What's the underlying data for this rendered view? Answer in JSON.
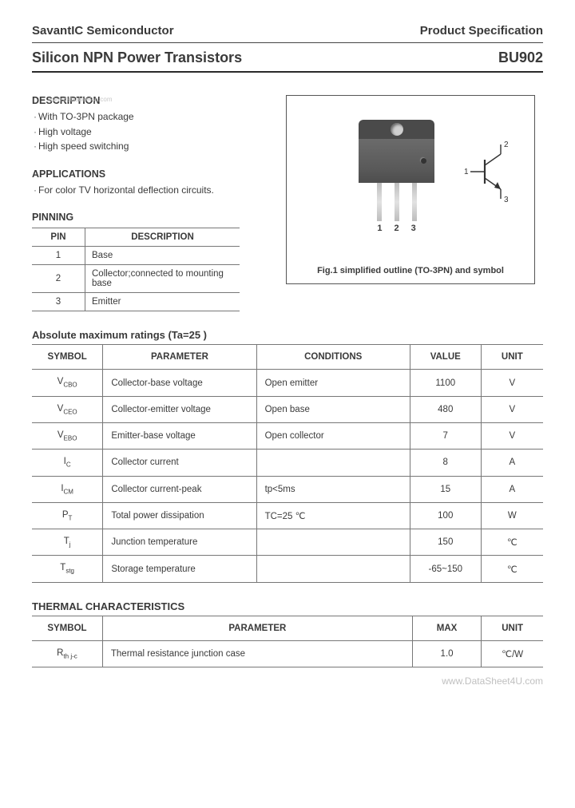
{
  "header": {
    "company": "SavantIC Semiconductor",
    "doc_type": "Product Specification"
  },
  "title": {
    "product_family": "Silicon NPN Power Transistors",
    "part_number": "BU902"
  },
  "watermark": "www.datasheet4u.com",
  "sections": {
    "description": {
      "heading": "DESCRIPTION",
      "items": [
        "With TO-3PN package",
        "High voltage",
        "High speed switching"
      ]
    },
    "applications": {
      "heading": "APPLICATIONS",
      "items": [
        "For color TV horizontal deflection circuits."
      ]
    },
    "pinning": {
      "heading": "PINNING",
      "columns": [
        "PIN",
        "DESCRIPTION"
      ],
      "rows": [
        {
          "pin": "1",
          "desc": "Base"
        },
        {
          "pin": "2",
          "desc": "Collector;connected to mounting base"
        },
        {
          "pin": "3",
          "desc": "Emitter"
        }
      ]
    }
  },
  "figure": {
    "lead_numbers": [
      "1",
      "2",
      "3"
    ],
    "symbol_pins": {
      "p1": "1",
      "p2": "2",
      "p3": "3"
    },
    "caption": "Fig.1 simplified outline (TO-3PN) and symbol"
  },
  "ratings": {
    "heading": "Absolute maximum ratings (Ta=25 )",
    "columns": [
      "SYMBOL",
      "PARAMETER",
      "CONDITIONS",
      "VALUE",
      "UNIT"
    ],
    "rows": [
      {
        "sym": "V",
        "sub": "CBO",
        "param": "Collector-base voltage",
        "cond": "Open emitter",
        "val": "1100",
        "unit": "V"
      },
      {
        "sym": "V",
        "sub": "CEO",
        "param": "Collector-emitter voltage",
        "cond": "Open base",
        "val": "480",
        "unit": "V"
      },
      {
        "sym": "V",
        "sub": "EBO",
        "param": "Emitter-base voltage",
        "cond": "Open collector",
        "val": "7",
        "unit": "V"
      },
      {
        "sym": "I",
        "sub": "C",
        "param": "Collector current",
        "cond": "",
        "val": "8",
        "unit": "A"
      },
      {
        "sym": "I",
        "sub": "CM",
        "param": "Collector current-peak",
        "cond": "tp<5ms",
        "val": "15",
        "unit": "A"
      },
      {
        "sym": "P",
        "sub": "T",
        "param": "Total power dissipation",
        "cond": "TC=25 ℃",
        "val": "100",
        "unit": "W"
      },
      {
        "sym": "T",
        "sub": "j",
        "param": "Junction temperature",
        "cond": "",
        "val": "150",
        "unit": "℃"
      },
      {
        "sym": "T",
        "sub": "stg",
        "param": "Storage temperature",
        "cond": "",
        "val": "-65~150",
        "unit": "℃"
      }
    ]
  },
  "thermal": {
    "heading": "THERMAL CHARACTERISTICS",
    "columns": [
      "SYMBOL",
      "PARAMETER",
      "MAX",
      "UNIT"
    ],
    "rows": [
      {
        "sym": "R",
        "sub": "th j-c",
        "param": "Thermal resistance junction case",
        "max": "1.0",
        "unit": "℃/W"
      }
    ]
  },
  "footer": "www.DataSheet4U.com"
}
